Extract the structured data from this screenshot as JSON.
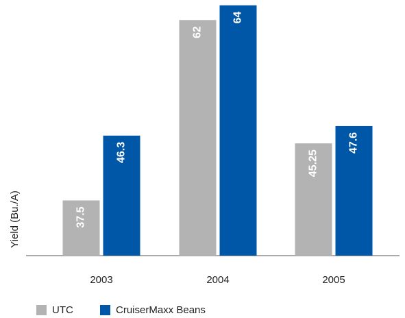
{
  "chart_data": {
    "type": "bar",
    "y_label": "Yield (Bu./A)",
    "categories": [
      "2003",
      "2004",
      "2005"
    ],
    "series": [
      {
        "name": "UTC",
        "color": "#b3b3b3",
        "values": [
          37.5,
          62,
          45.25
        ]
      },
      {
        "name": "CruiserMaxx Beans",
        "color": "#0057a8",
        "values": [
          46.3,
          64,
          47.6
        ]
      }
    ],
    "ylim": [
      30,
      65
    ]
  }
}
